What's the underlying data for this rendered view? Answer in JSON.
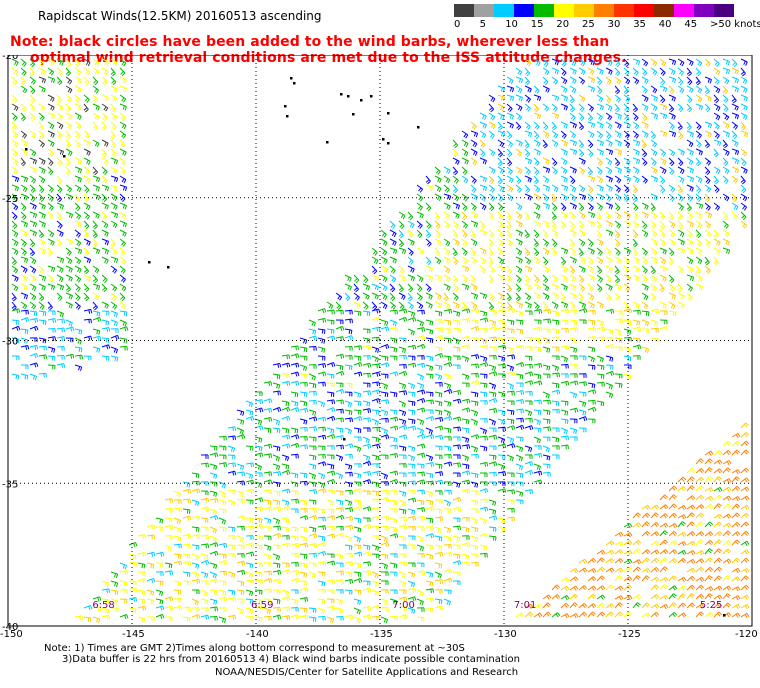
{
  "header": {
    "title": "Rapidscat Winds(12.5KM)  20160513  ascending"
  },
  "colorbar": {
    "colors": [
      "#404040",
      "#a0a0a0",
      "#00ccff",
      "#0000ff",
      "#00bb00",
      "#ffff00",
      "#ffcc00",
      "#ff8000",
      "#ff3300",
      "#ff0000",
      "#8b2a00",
      "#ff00ff",
      "#8000c0",
      "#4b0082"
    ],
    "labels": [
      "0",
      "5",
      "10",
      "15",
      "20",
      "25",
      "30",
      "35",
      "40",
      "45",
      ">50 knots"
    ]
  },
  "note": {
    "line1": "Note: black circles have been added to the wind barbs, wherever less than",
    "line2": "optimal wind retrieval conditions are met due to the ISS attitude changes."
  },
  "map": {
    "lat_labels": [
      "-20",
      "-25",
      "-30",
      "-35",
      "-40"
    ],
    "lon_labels": [
      "-150",
      "-145",
      "-140",
      "-135",
      "-130",
      "-125",
      "-120"
    ],
    "lat_values": [
      -20,
      -25,
      -30,
      -35,
      -40
    ],
    "lon_values": [
      -150,
      -145,
      -140,
      -135,
      -130,
      -125,
      -120
    ],
    "time_labels": [
      {
        "text": "6:58",
        "lon": -146.6
      },
      {
        "text": "6:59",
        "lon": -140.2
      },
      {
        "text": "7:00",
        "lon": -134.5
      },
      {
        "text": "7:01",
        "lon": -129.6
      },
      {
        "text": "5:25",
        "lon": -122.1
      }
    ],
    "land_color": "#000000",
    "grid_color": "#000000"
  },
  "footer": {
    "line1": "Note: 1) Times are GMT 2)Times along bottom correspond to measurement at ~30S",
    "line2": "3)Data buffer is 22 hrs from 20160513  4) Black wind barbs indicate possible contamination",
    "line3": "NOAA/NESDIS/Center for Satellite Applications and Research"
  }
}
